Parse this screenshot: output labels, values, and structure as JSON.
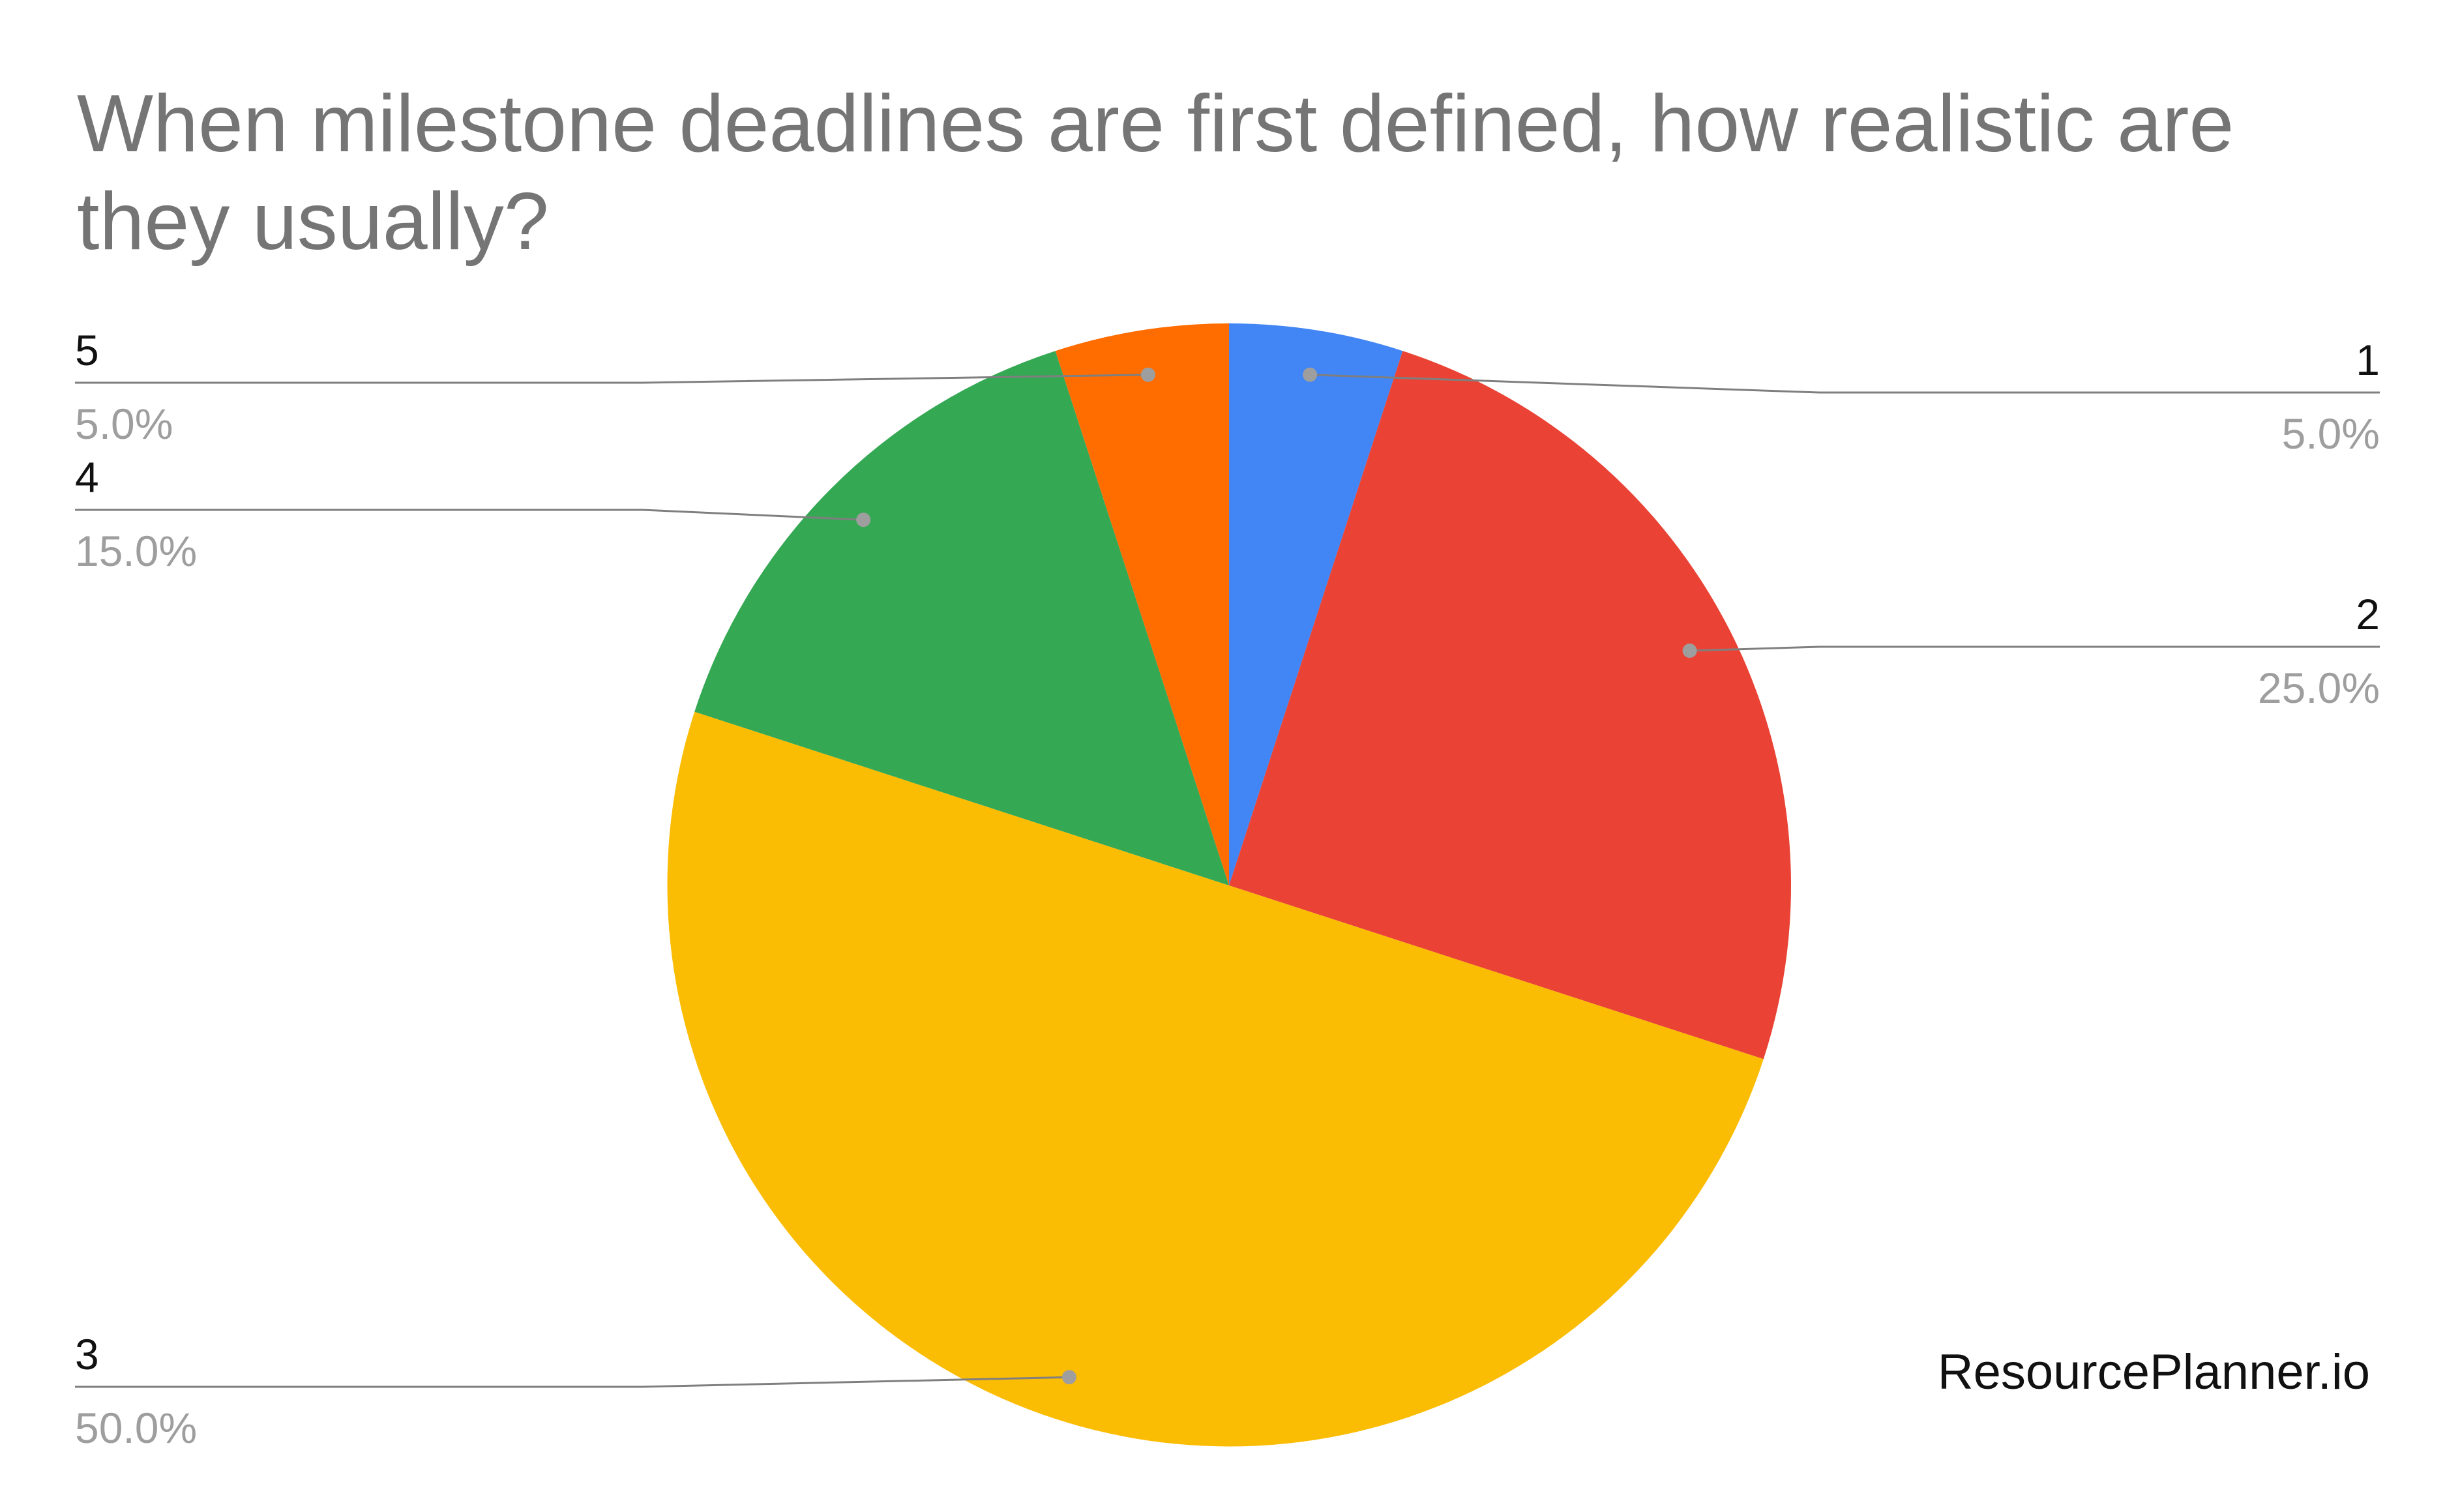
{
  "chart_data": {
    "type": "pie",
    "title": "When milestone deadlines are first defined, how realistic are they usually?",
    "start_angle_deg": 0,
    "direction": "clockwise",
    "slices": [
      {
        "label": "1",
        "value": 5.0,
        "display": "5.0%",
        "color": "#4285F4"
      },
      {
        "label": "2",
        "value": 25.0,
        "display": "25.0%",
        "color": "#EA4335"
      },
      {
        "label": "3",
        "value": 50.0,
        "display": "50.0%",
        "color": "#FBBC04"
      },
      {
        "label": "4",
        "value": 15.0,
        "display": "15.0%",
        "color": "#34A853"
      },
      {
        "label": "5",
        "value": 5.0,
        "display": "5.0%",
        "color": "#FF6D01"
      }
    ],
    "label_style": "leader-lines",
    "legend": "none"
  },
  "watermark": "ResourcePlanner.io",
  "colors": {
    "title": "#757575",
    "category_label": "#111111",
    "percent_label": "#9E9E9E",
    "leader_line": "#7F7F7F",
    "leader_dot": "#9E9E9E"
  }
}
